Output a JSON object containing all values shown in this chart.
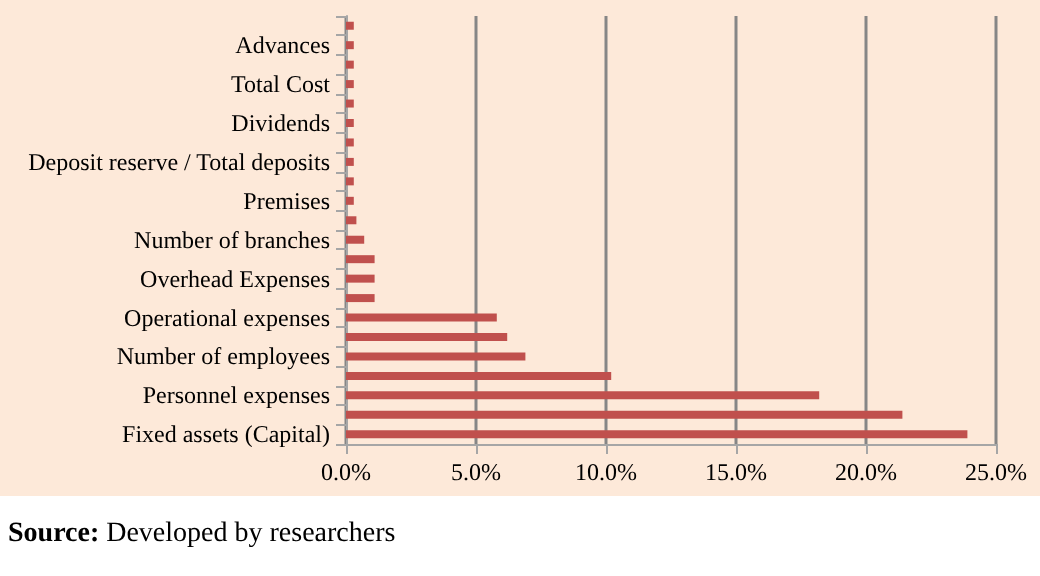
{
  "chart_data": {
    "type": "bar",
    "orientation": "horizontal",
    "categories": [
      null,
      "Advances",
      null,
      "Total Cost",
      null,
      "Dividends",
      null,
      "Deposit reserve / Total deposits",
      null,
      "Premises",
      null,
      "Number of branches",
      null,
      "Overhead Expenses",
      null,
      "Operational expenses",
      null,
      "Number of employees",
      null,
      "Personnel expenses",
      null,
      "Fixed assets (Capital)"
    ],
    "values": [
      0.3,
      0.3,
      0.3,
      0.3,
      0.3,
      0.3,
      0.3,
      0.3,
      0.3,
      0.3,
      0.4,
      0.7,
      1.1,
      1.1,
      1.1,
      5.8,
      6.2,
      6.9,
      10.2,
      18.2,
      21.4,
      23.9
    ],
    "color": "#c0504d",
    "xlim": [
      0,
      25
    ],
    "xticks": [
      {
        "value": 0,
        "label": "0.0%"
      },
      {
        "value": 5,
        "label": "5.0%"
      },
      {
        "value": 10,
        "label": "10.0%"
      },
      {
        "value": 15,
        "label": "15.0%"
      },
      {
        "value": 20,
        "label": "20.0%"
      },
      {
        "value": 25,
        "label": "25.0%"
      }
    ],
    "grid": "x",
    "annotations": [
      "Source: Developed by researchers"
    ]
  }
}
